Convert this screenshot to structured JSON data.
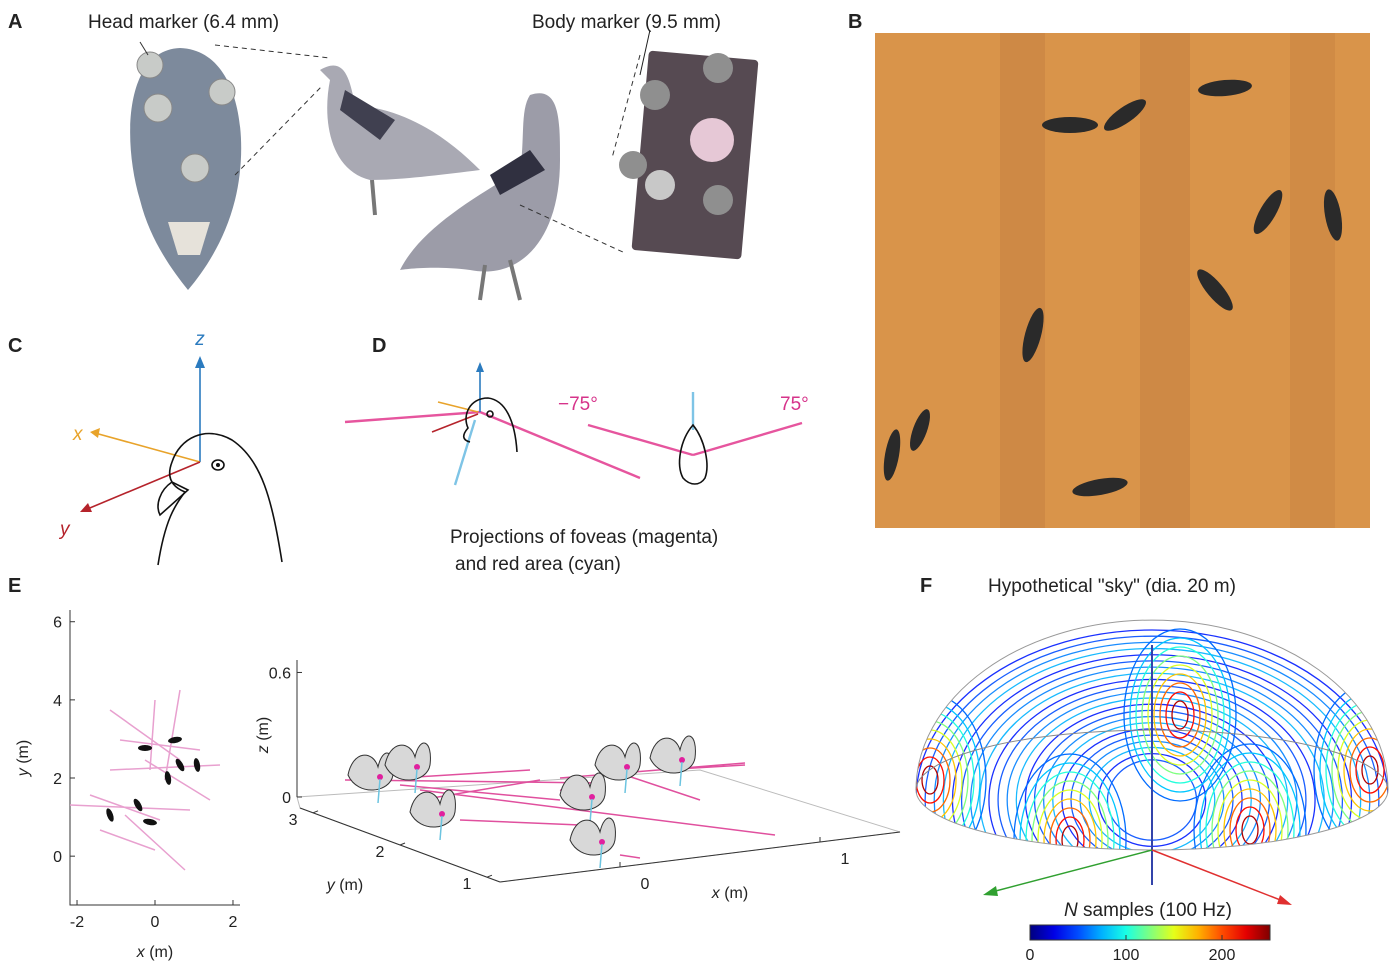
{
  "panels": {
    "A": {
      "letter": "A",
      "head_marker": "Head marker (6.4 mm)",
      "body_marker": "Body marker (9.5 mm)"
    },
    "B": {
      "letter": "B"
    },
    "C": {
      "letter": "C",
      "axis_z": "z",
      "axis_x": "x",
      "axis_y": "y"
    },
    "D": {
      "letter": "D",
      "angle_left": "−75°",
      "angle_right": "75°",
      "caption_line1": "Projections of foveas (magenta)",
      "caption_line2": "and red area (cyan)"
    },
    "E": {
      "letter": "E",
      "plot2d": {
        "xlabel_var": "x",
        "xlabel_unit": " (m)",
        "ylabel_var": "y",
        "ylabel_unit": " (m)",
        "xlim": [
          -2.18,
          2.18
        ],
        "ylim": [
          -1.25,
          6.3
        ],
        "xticks": [
          -2,
          0,
          2
        ],
        "yticks": [
          0,
          2,
          4,
          6
        ]
      },
      "plot3d": {
        "xlabel_var": "x",
        "xlabel_unit": " (m)",
        "ylabel_var": "y",
        "ylabel_unit": " (m)",
        "zlabel_var": "z",
        "zlabel_unit": " (m)",
        "xlim": [
          -0.6,
          1.4
        ],
        "ylim": [
          0.85,
          3.15
        ],
        "zlim": [
          0,
          0.66
        ],
        "xticks": [
          0,
          1
        ],
        "yticks": [
          1,
          2,
          3
        ],
        "zticks": [
          0,
          0.6
        ]
      }
    },
    "F": {
      "letter": "F",
      "title": "Hypothetical \"sky\" (dia. 20 m)",
      "colorbar_var": "N",
      "colorbar_unit": " samples (100 Hz)",
      "clim": [
        0,
        250
      ],
      "cticks": [
        0,
        100,
        200
      ]
    }
  }
}
